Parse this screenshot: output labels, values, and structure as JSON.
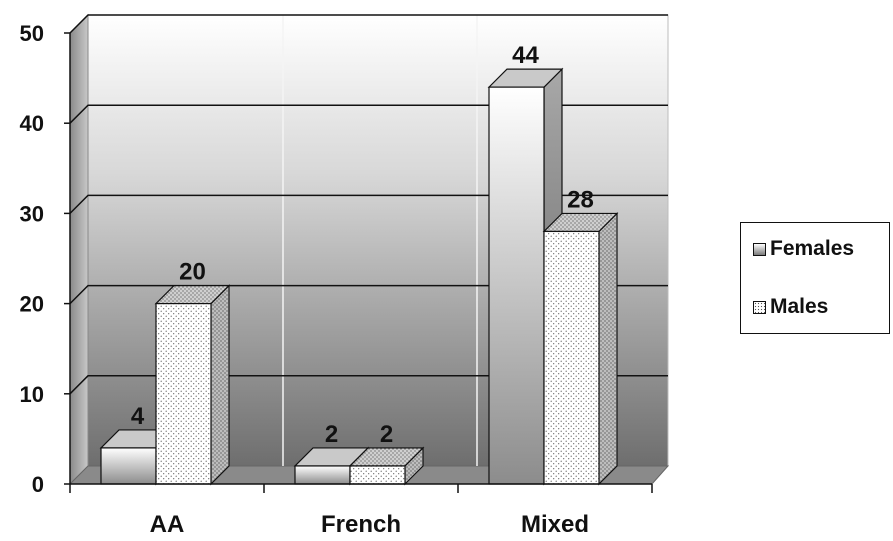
{
  "chart_data": {
    "type": "bar",
    "categories": [
      "AA",
      "French",
      "Mixed"
    ],
    "series": [
      {
        "name": "Females",
        "values": [
          4,
          2,
          44
        ]
      },
      {
        "name": "Males",
        "values": [
          20,
          2,
          28
        ]
      }
    ],
    "ylim": [
      0,
      50
    ],
    "yticks": [
      "0",
      "10",
      "20",
      "30",
      "40",
      "50"
    ],
    "grid": true,
    "legend": "right",
    "title": "",
    "xlabel": "",
    "ylabel": ""
  },
  "legend": {
    "females_label": "Females",
    "males_label": "Males"
  }
}
